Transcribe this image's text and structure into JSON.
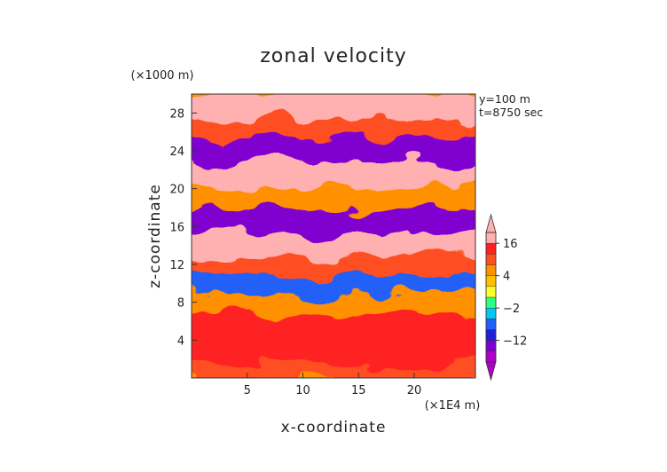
{
  "chart_data": {
    "type": "heatmap",
    "title": "zonal velocity",
    "xlabel": "x-coordinate",
    "ylabel": "z-coordinate",
    "x_unit": "(×1E4 m)",
    "y_unit": "(×1000 m)",
    "annotations": [
      "y=100  m",
      "t=8750 sec"
    ],
    "xlim": [
      0,
      25.5
    ],
    "ylim": [
      0,
      30
    ],
    "x_ticks": [
      5,
      10,
      15,
      20
    ],
    "x_tick_labels": [
      "5",
      "10",
      "15",
      "20"
    ],
    "y_ticks": [
      4,
      8,
      12,
      16,
      20,
      24,
      28
    ],
    "y_tick_labels": [
      "4",
      "8",
      "12",
      "16",
      "20",
      "24",
      "28"
    ],
    "colorbar": {
      "levels": [
        -20,
        -16,
        -12,
        -8,
        -4,
        -2,
        0,
        2,
        4,
        8,
        12,
        16,
        20
      ],
      "tick_values": [
        16,
        4,
        -2,
        -12
      ],
      "tick_labels": [
        "16",
        "4",
        "−2",
        "−12"
      ],
      "colors": [
        "#b000c8",
        "#8000d0",
        "#2020d8",
        "#2060f8",
        "#00c8f0",
        "#30ff80",
        "#ffff30",
        "#ffc000",
        "#ff9000",
        "#ff5020",
        "#ff2020",
        "#ffb0b0"
      ]
    },
    "bands": [
      {
        "z": 1.5,
        "value": 8
      },
      {
        "z": 3.5,
        "value": 12
      },
      {
        "z": 6,
        "value": 14
      },
      {
        "z": 9,
        "value": 4
      },
      {
        "z": 11,
        "value": -6
      },
      {
        "z": 13,
        "value": 10
      },
      {
        "z": 15,
        "value": 18
      },
      {
        "z": 17.5,
        "value": -14
      },
      {
        "z": 20,
        "value": 4
      },
      {
        "z": 22.5,
        "value": 16
      },
      {
        "z": 25,
        "value": -14
      },
      {
        "z": 27.5,
        "value": 10
      },
      {
        "z": 29.5,
        "value": 18
      }
    ]
  }
}
